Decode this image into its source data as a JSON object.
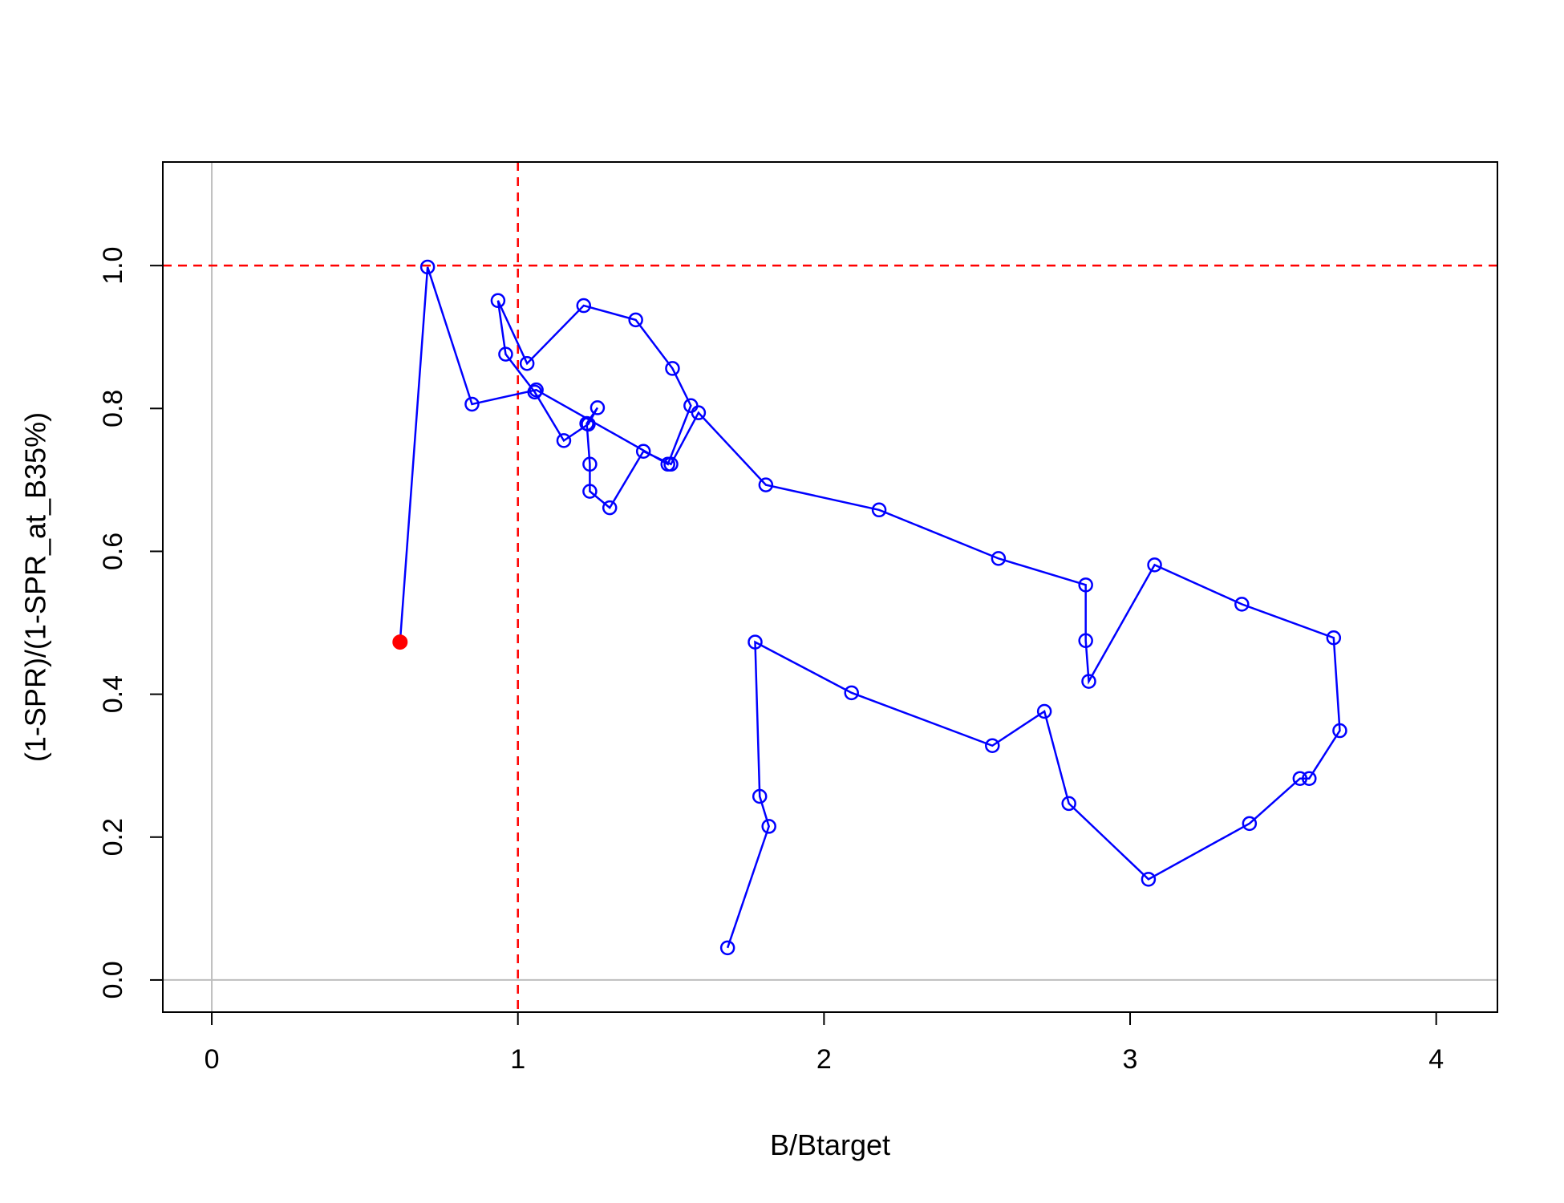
{
  "chart_data": {
    "type": "scatter",
    "xlabel": "B/Btarget",
    "ylabel": "(1-SPR)/(1-SPR_at_B35%)",
    "xlim": [
      -0.16,
      4.2
    ],
    "ylim": [
      -0.045,
      1.145
    ],
    "x_ticks": [
      "0",
      "1",
      "2",
      "3",
      "4"
    ],
    "y_ticks": [
      "0.0",
      "0.2",
      "0.4",
      "0.6",
      "0.8",
      "1.0"
    ],
    "grid": false,
    "reference_lines": {
      "x_target": 1.0,
      "y_target": 1.0,
      "x_zero": 0.0,
      "y_zero": 0.0
    },
    "colors": {
      "series": "#0000ff",
      "reference": "#ff0000",
      "zero_lines": "#bebebe",
      "final_point": "#ff0000"
    },
    "series": [
      {
        "x": [
          1.685,
          1.82,
          1.79,
          1.775,
          2.09,
          2.55,
          2.72,
          2.8,
          3.06,
          3.39,
          3.555,
          3.585,
          3.685,
          3.665,
          3.365,
          3.08,
          2.865,
          2.855,
          2.855,
          2.57,
          2.18,
          1.81,
          1.59,
          1.5,
          1.41,
          1.3,
          1.235,
          1.235,
          1.225,
          1.26,
          1.23,
          1.15,
          1.055,
          0.96,
          0.935,
          1.03,
          1.215,
          1.385,
          1.505,
          1.565,
          1.49,
          1.06,
          0.85,
          0.705,
          0.615
        ],
        "y": [
          0.045,
          0.215,
          0.257,
          0.473,
          0.402,
          0.328,
          0.376,
          0.247,
          0.141,
          0.219,
          0.282,
          0.282,
          0.349,
          0.479,
          0.526,
          0.581,
          0.418,
          0.475,
          0.553,
          0.59,
          0.658,
          0.693,
          0.794,
          0.722,
          0.74,
          0.661,
          0.684,
          0.722,
          0.779,
          0.801,
          0.778,
          0.755,
          0.823,
          0.876,
          0.951,
          0.863,
          0.944,
          0.924,
          0.856,
          0.804,
          0.722,
          0.826,
          0.806,
          0.998,
          0.473
        ]
      }
    ]
  }
}
